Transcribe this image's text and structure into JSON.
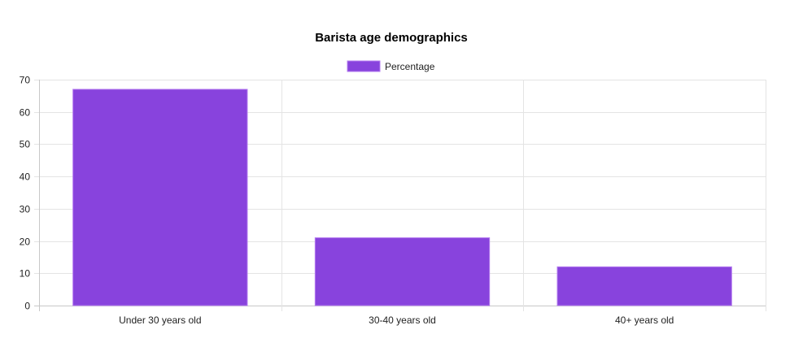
{
  "chart_data": {
    "type": "bar",
    "title": "Barista age demographics",
    "categories": [
      "Under 30 years old",
      "30-40 years old",
      "40+ years old"
    ],
    "series": [
      {
        "name": "Percentage",
        "values": [
          67,
          21,
          12
        ],
        "color": "#8843dd"
      }
    ],
    "ylim": [
      0,
      70
    ],
    "yticks": [
      0,
      10,
      20,
      30,
      40,
      50,
      60,
      70
    ],
    "grid": true,
    "legend_position": "top-center",
    "colors": {
      "bar_fill": "#8843dd",
      "bar_border": "#b57cf0",
      "grid": "#e4e4e4",
      "axis": "#c8c8c8",
      "text": "#222222",
      "title": "#000000"
    }
  }
}
